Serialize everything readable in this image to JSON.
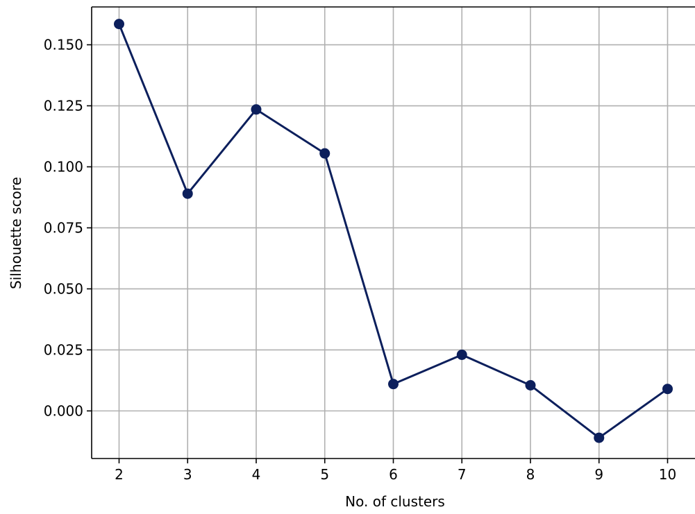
{
  "colors": {
    "series": "#0c1f5c",
    "grid": "#b0b0b0",
    "axis": "#000000"
  },
  "chart_data": {
    "type": "line",
    "title": "",
    "xlabel": "No. of clusters",
    "ylabel": "Silhouette score",
    "grid": true,
    "legend": "none",
    "xlim": [
      1.6,
      10.4
    ],
    "ylim": [
      -0.0195,
      0.1655
    ],
    "x": [
      2,
      3,
      4,
      5,
      6,
      7,
      8,
      9,
      10
    ],
    "xticks": [
      2,
      3,
      4,
      5,
      6,
      7,
      8,
      9,
      10
    ],
    "xtick_labels": [
      "2",
      "3",
      "4",
      "5",
      "6",
      "7",
      "8",
      "9",
      "10"
    ],
    "yticks": [
      0.0,
      0.025,
      0.05,
      0.075,
      0.1,
      0.125,
      0.15
    ],
    "ytick_labels": [
      "0.000",
      "0.025",
      "0.050",
      "0.075",
      "0.100",
      "0.125",
      "0.150"
    ],
    "series": [
      {
        "values": [
          0.1585,
          0.089,
          0.1235,
          0.1055,
          0.011,
          0.023,
          0.0105,
          -0.011,
          0.009
        ],
        "marker": "circle"
      }
    ]
  }
}
